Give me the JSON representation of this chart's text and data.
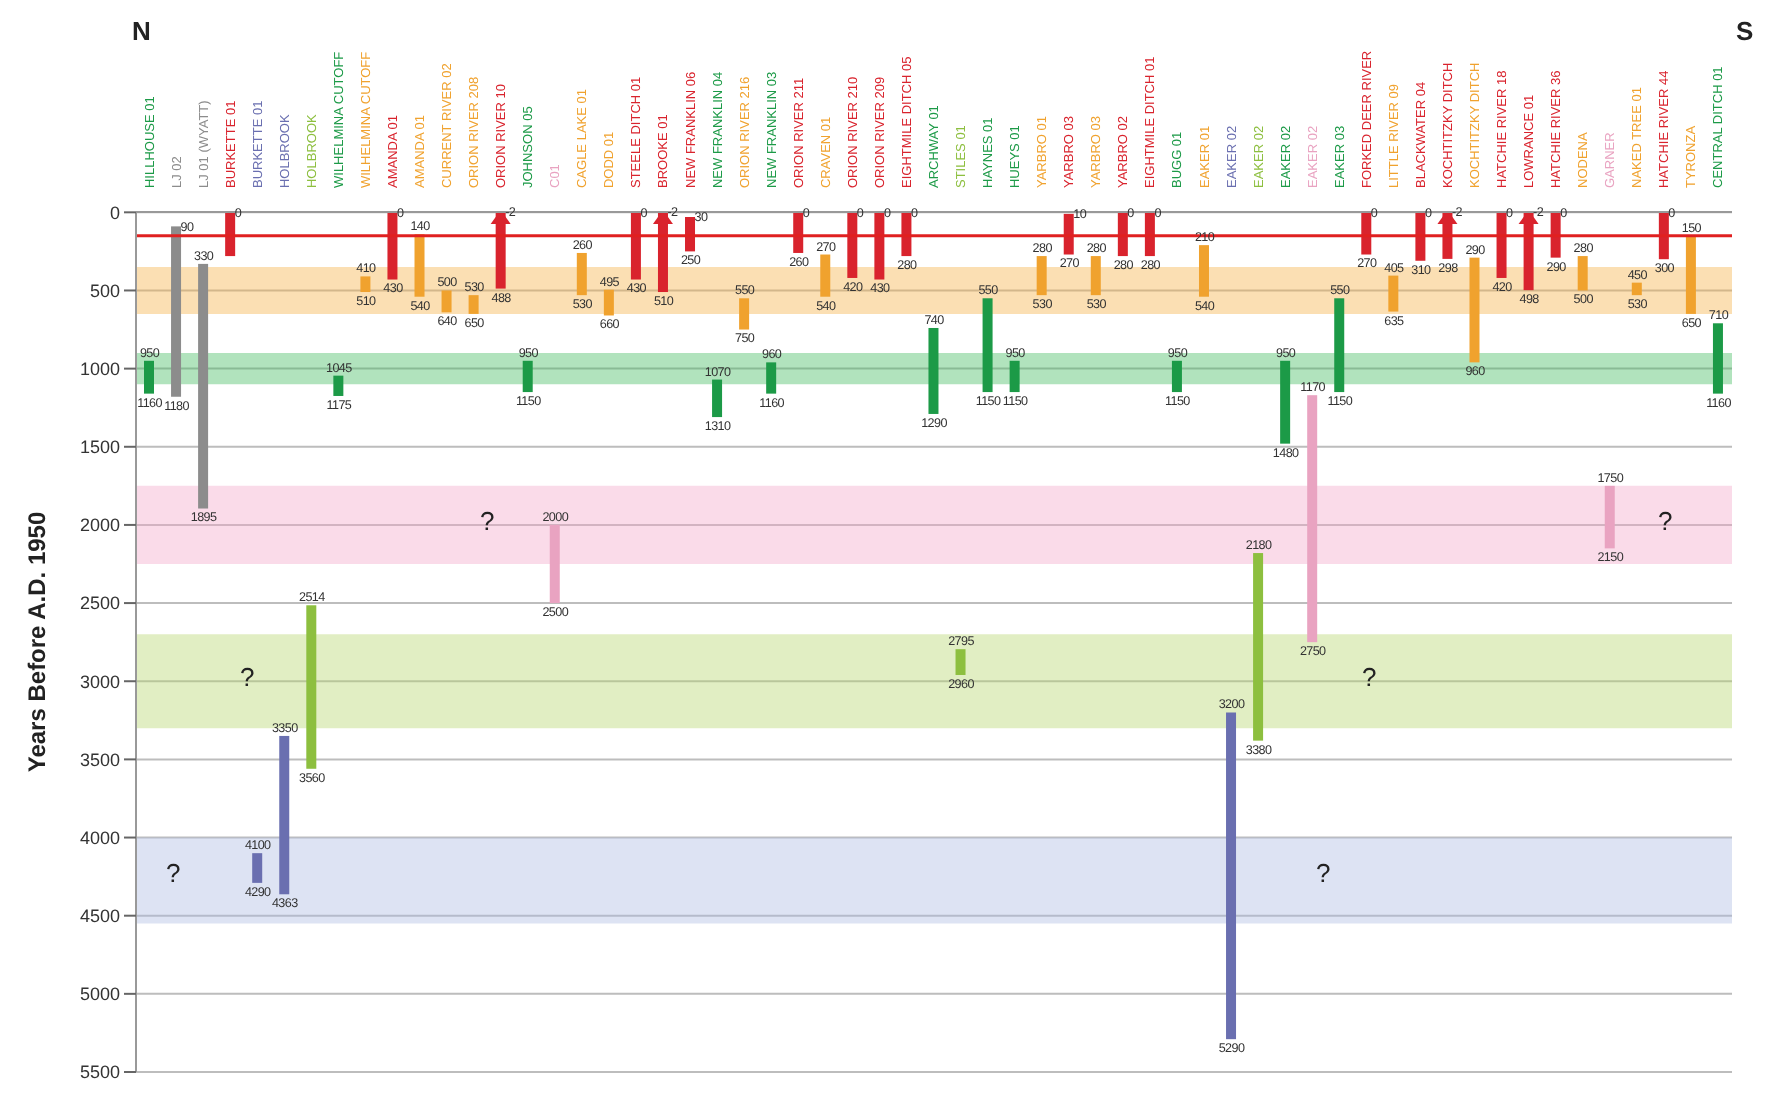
{
  "chart_data": {
    "type": "bar",
    "ylabel": "Years Before A.D. 1950",
    "categories": [
      "HILLHOUSE 01",
      "LJ 02",
      "LJ 01 (WYATT)",
      "BURKETTE 01",
      "BURKETTE 01",
      "HOLBROOK",
      "HOLBROOK",
      "WILHELMINA CUTOFF",
      "WILHELMINA CUTOFF",
      "AMANDA 01",
      "AMANDA 01",
      "CURRENT RIVER 02",
      "ORION RIVER 208",
      "ORION RIVER 10",
      "JOHNSON 05",
      "C01",
      "CAGLE LAKE 01",
      "DODD 01",
      "STEELE DITCH 01",
      "BROOKE 01",
      "NEW FRANKLIN 06",
      "NEW FRANKLIN 04",
      "ORION RIVER 216",
      "NEW FRANKLIN 03",
      "ORION RIVER 211",
      "CRAVEN 01",
      "ORION RIVER 210",
      "ORION RIVER 209",
      "EIGHTMILE DITCH 05",
      "ARCHWAY 01",
      "STILES 01",
      "HAYNES 01",
      "HUEYS 01",
      "YARBRO 01",
      "YARBRO 03",
      "YARBRO 03",
      "YARBRO 02",
      "EIGHTMILE DITCH 01",
      "BUGG 01",
      "EAKER 01",
      "EAKER 02",
      "EAKER 02",
      "EAKER 02",
      "EAKER 02",
      "EAKER 03",
      "FORKED DEER RIVER",
      "LITTLE RIVER 09",
      "BLACKWATER 04",
      "KOCHTITZKY DITCH",
      "KOCHTITZKY DITCH",
      "HATCHIE RIVER 18",
      "LOWRANCE 01",
      "HATCHIE RIVER 36",
      "NODENA",
      "GARNER",
      "NAKED TREE 01",
      "HATCHIE RIVER 44",
      "TYRONZA",
      "CENTRAL DITCH 01"
    ],
    "base": [
      950,
      90,
      330,
      0,
      4100,
      3350,
      2514,
      1045,
      410,
      0,
      140,
      500,
      530,
      -2,
      950,
      2000,
      260,
      495,
      0,
      -2,
      30,
      1070,
      550,
      960,
      0,
      270,
      0,
      0,
      0,
      740,
      2795,
      550,
      950,
      280,
      10,
      280,
      0,
      0,
      950,
      210,
      3200,
      2180,
      950,
      1170,
      550,
      0,
      405,
      0,
      -2,
      290,
      0,
      -2,
      0,
      280,
      1750,
      450,
      0,
      150,
      710
    ],
    "values": [
      210,
      1090,
      1565,
      280,
      190,
      1013,
      1046,
      130,
      100,
      430,
      400,
      140,
      120,
      490,
      200,
      500,
      270,
      165,
      430,
      512,
      220,
      240,
      200,
      200,
      260,
      270,
      420,
      430,
      280,
      550,
      165,
      600,
      200,
      250,
      260,
      250,
      280,
      280,
      200,
      330,
      2090,
      1200,
      530,
      1580,
      600,
      270,
      230,
      310,
      300,
      670,
      420,
      500,
      290,
      220,
      400,
      80,
      300,
      500,
      450
    ],
    "colors": [
      "#1c9a47",
      "#8c8c8c",
      "#8c8c8c",
      "#d9232d",
      "#6a6fb0",
      "#6a6fb0",
      "#8dbf3f",
      "#1c9a47",
      "#f0a22e",
      "#d9232d",
      "#f0a22e",
      "#f0a22e",
      "#f0a22e",
      "#d9232d",
      "#1c9a47",
      "#e9a3c1",
      "#f0a22e",
      "#f0a22e",
      "#d9232d",
      "#d9232d",
      "#d9232d",
      "#1c9a47",
      "#f0a22e",
      "#1c9a47",
      "#d9232d",
      "#f0a22e",
      "#d9232d",
      "#d9232d",
      "#d9232d",
      "#1c9a47",
      "#8dbf3f",
      "#1c9a47",
      "#1c9a47",
      "#f0a22e",
      "#d9232d",
      "#f0a22e",
      "#d9232d",
      "#d9232d",
      "#1c9a47",
      "#f0a22e",
      "#6a6fb0",
      "#8dbf3f",
      "#1c9a47",
      "#e9a3c1",
      "#1c9a47",
      "#d9232d",
      "#f0a22e",
      "#d9232d",
      "#d9232d",
      "#f0a22e",
      "#d9232d",
      "#d9232d",
      "#d9232d",
      "#f0a22e",
      "#e9a3c1",
      "#f0a22e",
      "#d9232d",
      "#f0a22e",
      "#1c9a47"
    ],
    "ylim": [
      5500,
      -2
    ],
    "yticks": [
      0,
      500,
      1000,
      1500,
      2000,
      2500,
      3000,
      3500,
      4000,
      4500,
      5000,
      5500
    ],
    "grid": "y",
    "ref_lines": [
      {
        "axis": "y",
        "value": 150,
        "color": "#e02020"
      }
    ],
    "bands": [
      {
        "axis": "y",
        "from": 350,
        "to": 650,
        "color": "#f5b041"
      },
      {
        "axis": "y",
        "from": 900,
        "to": 1100,
        "color": "#3cb85a"
      },
      {
        "axis": "y",
        "from": 1750,
        "to": 2250,
        "color": "#f2a6c8"
      },
      {
        "axis": "y",
        "from": 2700,
        "to": 3300,
        "color": "#b5d56a"
      },
      {
        "axis": "y",
        "from": 4000,
        "to": 4550,
        "color": "#a9b8e0"
      }
    ],
    "annotations": [
      "N",
      "S",
      "?",
      "?",
      "?",
      "?",
      "?",
      "?",
      {
        "text": "950",
        "x": "HILLHOUSE 01",
        "y": 950
      },
      {
        "text": "1160",
        "x": "HILLHOUSE 01",
        "y": 1160
      },
      {
        "text": "90",
        "x": "LJ 02",
        "y": 90
      },
      {
        "text": "1180",
        "x": "LJ 02",
        "y": 1180
      },
      {
        "text": "330",
        "x": "LJ 01 (WYATT)",
        "y": 330
      },
      {
        "text": "1895",
        "x": "LJ 01 (WYATT)",
        "y": 1895
      },
      {
        "text": "0",
        "x": "BURKETTE 01",
        "y": 0
      },
      {
        "text": "4100",
        "y": 4100
      },
      {
        "text": "4290",
        "y": 4290
      },
      {
        "text": "3350",
        "x": "HOLBROOK",
        "y": 3350
      },
      {
        "text": "4363",
        "x": "HOLBROOK",
        "y": 4363
      },
      {
        "text": "2514",
        "y": 2514
      },
      {
        "text": "3560",
        "y": 3560
      },
      {
        "text": "1045",
        "x": "WILHELMINA CUTOFF",
        "y": 1045
      },
      {
        "text": "1175",
        "x": "WILHELMINA CUTOFF",
        "y": 1175
      },
      {
        "text": "410",
        "y": 410
      },
      {
        "text": "510",
        "y": 510
      },
      {
        "text": "0",
        "x": "AMANDA 01",
        "y": 0
      },
      {
        "text": "430",
        "x": "AMANDA 01",
        "y": 430
      },
      {
        "text": "140",
        "y": 140
      },
      {
        "text": "540",
        "y": 540
      },
      {
        "text": "500",
        "x": "CURRENT RIVER 02",
        "y": 500
      },
      {
        "text": "640",
        "x": "CURRENT RIVER 02",
        "y": 640
      },
      {
        "text": "530",
        "x": "ORION RIVER 208",
        "y": 530
      },
      {
        "text": "650",
        "x": "ORION RIVER 208",
        "y": 650
      },
      {
        "text": "-2",
        "x": "ORION RIVER 10",
        "y": -2
      },
      {
        "text": "488",
        "x": "ORION RIVER 10",
        "y": 488
      },
      {
        "text": "950",
        "x": "JOHNSON 05",
        "y": 950
      },
      {
        "text": "1150",
        "x": "JOHNSON 05",
        "y": 1150
      },
      {
        "text": "2000",
        "x": "C01",
        "y": 2000
      },
      {
        "text": "2500",
        "x": "C01",
        "y": 2500
      },
      {
        "text": "260",
        "x": "CAGLE LAKE 01",
        "y": 260
      },
      {
        "text": "530",
        "x": "CAGLE LAKE 01",
        "y": 530
      },
      {
        "text": "495",
        "x": "DODD 01",
        "y": 495
      },
      {
        "text": "660",
        "x": "DODD 01",
        "y": 660
      },
      {
        "text": "0",
        "x": "STEELE DITCH 01",
        "y": 0
      },
      {
        "text": "430",
        "x": "STEELE DITCH 01",
        "y": 430
      },
      {
        "text": "-2",
        "x": "BROOKE 01",
        "y": -2
      },
      {
        "text": "510",
        "x": "BROOKE 01",
        "y": 510
      },
      {
        "text": "30",
        "x": "NEW FRANKLIN 06",
        "y": 30
      },
      {
        "text": "250",
        "x": "NEW FRANKLIN 06",
        "y": 250
      },
      {
        "text": "1070",
        "x": "NEW FRANKLIN 04",
        "y": 1070
      },
      {
        "text": "1310",
        "x": "NEW FRANKLIN 04",
        "y": 1310
      },
      {
        "text": "550",
        "x": "ORION RIVER 216",
        "y": 550
      },
      {
        "text": "750",
        "x": "ORION RIVER 216",
        "y": 750
      },
      {
        "text": "960",
        "x": "NEW FRANKLIN 03",
        "y": 960
      },
      {
        "text": "1160",
        "x": "NEW FRANKLIN 03",
        "y": 1160
      },
      {
        "text": "0",
        "x": "ORION RIVER 211",
        "y": 0
      },
      {
        "text": "260",
        "x": "ORION RIVER 211",
        "y": 260
      },
      {
        "text": "270",
        "x": "CRAVEN 01",
        "y": 270
      },
      {
        "text": "540",
        "x": "CRAVEN 01",
        "y": 540
      },
      {
        "text": "0",
        "x": "ORION RIVER 210",
        "y": 0
      },
      {
        "text": "420",
        "x": "ORION RIVER 210",
        "y": 420
      },
      {
        "text": "0",
        "x": "ORION RIVER 209",
        "y": 0
      },
      {
        "text": "430",
        "x": "ORION RIVER 209",
        "y": 430
      },
      {
        "text": "0",
        "x": "EIGHTMILE DITCH 05",
        "y": 0
      },
      {
        "text": "280",
        "x": "EIGHTMILE DITCH 05",
        "y": 280
      },
      {
        "text": "740",
        "x": "ARCHWAY 01",
        "y": 740
      },
      {
        "text": "1290",
        "x": "ARCHWAY 01",
        "y": 1290
      },
      {
        "text": "2795",
        "x": "STILES 01",
        "y": 2795
      },
      {
        "text": "2960",
        "x": "STILES 01",
        "y": 2960
      },
      {
        "text": "550",
        "x": "HAYNES 01",
        "y": 550
      },
      {
        "text": "1150",
        "x": "HAYNES 01",
        "y": 1150
      },
      {
        "text": "950",
        "x": "HUEYS 01",
        "y": 950
      },
      {
        "text": "1150",
        "x": "HUEYS 01",
        "y": 1150
      },
      {
        "text": "280",
        "x": "YARBRO 01",
        "y": 280
      },
      {
        "text": "530",
        "x": "YARBRO 01",
        "y": 530
      },
      {
        "text": "10",
        "x": "YARBRO 03",
        "y": 10
      },
      {
        "text": "270",
        "x": "YARBRO 03",
        "y": 270
      },
      {
        "text": "280",
        "y": 280
      },
      {
        "text": "530",
        "y": 530
      },
      {
        "text": "0",
        "x": "YARBRO 02",
        "y": 0
      },
      {
        "text": "280",
        "x": "YARBRO 02",
        "y": 280
      },
      {
        "text": "0",
        "x": "EIGHTMILE DITCH 01",
        "y": 0
      },
      {
        "text": "280",
        "x": "EIGHTMILE DITCH 01",
        "y": 280
      },
      {
        "text": "950",
        "x": "BUGG 01",
        "y": 950
      },
      {
        "text": "1150",
        "x": "BUGG 01",
        "y": 1150
      },
      {
        "text": "210",
        "x": "EAKER 01",
        "y": 210
      },
      {
        "text": "540",
        "x": "EAKER 01",
        "y": 540
      },
      {
        "text": "3200",
        "x": "EAKER 02",
        "y": 3200
      },
      {
        "text": "5290",
        "x": "EAKER 02",
        "y": 5290
      },
      {
        "text": "2180",
        "y": 2180
      },
      {
        "text": "3380",
        "y": 3380
      },
      {
        "text": "950",
        "y": 950
      },
      {
        "text": "1480",
        "y": 1480
      },
      {
        "text": "1170",
        "y": 1170
      },
      {
        "text": "2750",
        "y": 2750
      },
      {
        "text": "550",
        "x": "EAKER 03",
        "y": 550
      },
      {
        "text": "1150",
        "x": "EAKER 03",
        "y": 1150
      },
      {
        "text": "0",
        "x": "FORKED DEER RIVER",
        "y": 0
      },
      {
        "text": "270",
        "x": "FORKED DEER RIVER",
        "y": 270
      },
      {
        "text": "405",
        "x": "LITTLE RIVER 09",
        "y": 405
      },
      {
        "text": "635",
        "x": "LITTLE RIVER 09",
        "y": 635
      },
      {
        "text": "0",
        "x": "BLACKWATER 04",
        "y": 0
      },
      {
        "text": "310",
        "x": "BLACKWATER 04",
        "y": 310
      },
      {
        "text": "-2",
        "x": "KOCHTITZKY DITCH",
        "y": -2
      },
      {
        "text": "298",
        "x": "KOCHTITZKY DITCH",
        "y": 298
      },
      {
        "text": "290",
        "y": 290
      },
      {
        "text": "960",
        "y": 960
      },
      {
        "text": "0",
        "x": "HATCHIE RIVER 18",
        "y": 0
      },
      {
        "text": "420",
        "x": "HATCHIE RIVER 18",
        "y": 420
      },
      {
        "text": "-2",
        "x": "LOWRANCE 01",
        "y": -2
      },
      {
        "text": "498",
        "x": "LOWRANCE 01",
        "y": 498
      },
      {
        "text": "0",
        "x": "HATCHIE RIVER 36",
        "y": 0
      },
      {
        "text": "290",
        "x": "HATCHIE RIVER 36",
        "y": 290
      },
      {
        "text": "280",
        "x": "NODENA",
        "y": 280
      },
      {
        "text": "500",
        "x": "NODENA",
        "y": 500
      },
      {
        "text": "1750",
        "x": "GARNER",
        "y": 1750
      },
      {
        "text": "2150",
        "x": "GARNER",
        "y": 2150
      },
      {
        "text": "450",
        "x": "NAKED TREE 01",
        "y": 450
      },
      {
        "text": "530",
        "x": "NAKED TREE 01",
        "y": 530
      },
      {
        "text": "0",
        "x": "HATCHIE RIVER 44",
        "y": 0
      },
      {
        "text": "300",
        "x": "HATCHIE RIVER 44",
        "y": 300
      },
      {
        "text": "150",
        "x": "TYRONZA",
        "y": 150
      },
      {
        "text": "650",
        "x": "TYRONZA",
        "y": 650
      },
      {
        "text": "710",
        "x": "CENTRAL DITCH 01",
        "y": 710
      },
      {
        "text": "1160",
        "x": "CENTRAL DITCH 01",
        "y": 1160
      }
    ]
  }
}
